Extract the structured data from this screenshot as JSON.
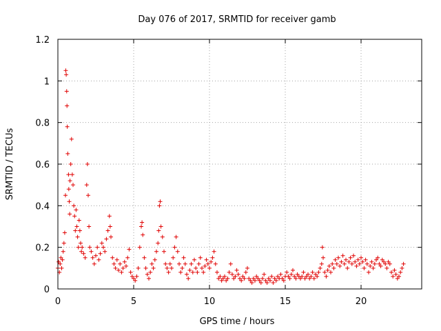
{
  "chart_data": {
    "type": "scatter",
    "title": "Day 076 of 2017, SRMTID for receiver gamb",
    "xlabel": "GPS time / hours",
    "ylabel": "SRMTID / TECUs",
    "xlim": [
      0,
      24
    ],
    "ylim": [
      0,
      1.2
    ],
    "x_ticks": [
      0,
      5,
      10,
      15,
      20
    ],
    "x_tick_labels": [
      "0",
      "5",
      "10",
      "15",
      "20"
    ],
    "y_ticks": [
      0,
      0.2,
      0.4,
      0.6,
      0.8,
      1.0,
      1.2
    ],
    "y_tick_labels": [
      "0",
      "0.2",
      "0.4",
      "0.6",
      "0.8",
      "1",
      "1.2"
    ],
    "grid": true,
    "marker": "+",
    "color": "#e00000",
    "series": [
      {
        "name": "SRMTID",
        "points": [
          [
            0.0,
            0.1
          ],
          [
            0.05,
            0.13
          ],
          [
            0.1,
            0.08
          ],
          [
            0.15,
            0.12
          ],
          [
            0.2,
            0.15
          ],
          [
            0.25,
            0.1
          ],
          [
            0.3,
            0.14
          ],
          [
            0.35,
            0.18
          ],
          [
            0.4,
            0.22
          ],
          [
            0.45,
            0.27
          ],
          [
            0.5,
            0.45
          ],
          [
            0.52,
            1.05
          ],
          [
            0.55,
            1.03
          ],
          [
            0.58,
            0.95
          ],
          [
            0.6,
            0.88
          ],
          [
            0.62,
            0.78
          ],
          [
            0.65,
            0.65
          ],
          [
            0.7,
            0.55
          ],
          [
            0.72,
            0.48
          ],
          [
            0.75,
            0.42
          ],
          [
            0.78,
            0.36
          ],
          [
            0.8,
            0.52
          ],
          [
            0.85,
            0.6
          ],
          [
            0.9,
            0.72
          ],
          [
            0.95,
            0.55
          ],
          [
            1.0,
            0.5
          ],
          [
            1.05,
            0.4
          ],
          [
            1.1,
            0.35
          ],
          [
            1.15,
            0.28
          ],
          [
            1.2,
            0.38
          ],
          [
            1.25,
            0.3
          ],
          [
            1.3,
            0.25
          ],
          [
            1.35,
            0.2
          ],
          [
            1.4,
            0.33
          ],
          [
            1.45,
            0.28
          ],
          [
            1.5,
            0.22
          ],
          [
            1.55,
            0.18
          ],
          [
            1.6,
            0.2
          ],
          [
            1.7,
            0.17
          ],
          [
            1.8,
            0.15
          ],
          [
            1.9,
            0.5
          ],
          [
            1.95,
            0.6
          ],
          [
            2.0,
            0.45
          ],
          [
            2.05,
            0.3
          ],
          [
            2.1,
            0.2
          ],
          [
            2.2,
            0.18
          ],
          [
            2.3,
            0.15
          ],
          [
            2.4,
            0.12
          ],
          [
            2.5,
            0.16
          ],
          [
            2.6,
            0.2
          ],
          [
            2.7,
            0.14
          ],
          [
            2.8,
            0.17
          ],
          [
            2.9,
            0.22
          ],
          [
            3.0,
            0.2
          ],
          [
            3.1,
            0.18
          ],
          [
            3.2,
            0.24
          ],
          [
            3.3,
            0.28
          ],
          [
            3.4,
            0.35
          ],
          [
            3.45,
            0.3
          ],
          [
            3.5,
            0.25
          ],
          [
            3.6,
            0.15
          ],
          [
            3.7,
            0.12
          ],
          [
            3.8,
            0.1
          ],
          [
            3.9,
            0.14
          ],
          [
            4.0,
            0.09
          ],
          [
            4.1,
            0.12
          ],
          [
            4.2,
            0.08
          ],
          [
            4.3,
            0.1
          ],
          [
            4.4,
            0.13
          ],
          [
            4.5,
            0.11
          ],
          [
            4.6,
            0.15
          ],
          [
            4.7,
            0.19
          ],
          [
            4.8,
            0.08
          ],
          [
            4.9,
            0.06
          ],
          [
            5.0,
            0.05
          ],
          [
            5.1,
            0.04
          ],
          [
            5.2,
            0.06
          ],
          [
            5.3,
            0.1
          ],
          [
            5.4,
            0.2
          ],
          [
            5.5,
            0.3
          ],
          [
            5.55,
            0.32
          ],
          [
            5.6,
            0.26
          ],
          [
            5.7,
            0.15
          ],
          [
            5.8,
            0.1
          ],
          [
            5.9,
            0.07
          ],
          [
            6.0,
            0.05
          ],
          [
            6.1,
            0.08
          ],
          [
            6.2,
            0.12
          ],
          [
            6.3,
            0.1
          ],
          [
            6.4,
            0.14
          ],
          [
            6.5,
            0.18
          ],
          [
            6.6,
            0.22
          ],
          [
            6.65,
            0.28
          ],
          [
            6.7,
            0.4
          ],
          [
            6.75,
            0.42
          ],
          [
            6.8,
            0.3
          ],
          [
            6.9,
            0.25
          ],
          [
            7.0,
            0.18
          ],
          [
            7.1,
            0.12
          ],
          [
            7.2,
            0.1
          ],
          [
            7.3,
            0.08
          ],
          [
            7.4,
            0.12
          ],
          [
            7.5,
            0.1
          ],
          [
            7.6,
            0.15
          ],
          [
            7.7,
            0.2
          ],
          [
            7.8,
            0.25
          ],
          [
            7.9,
            0.18
          ],
          [
            8.0,
            0.12
          ],
          [
            8.1,
            0.08
          ],
          [
            8.2,
            0.1
          ],
          [
            8.3,
            0.15
          ],
          [
            8.4,
            0.12
          ],
          [
            8.5,
            0.07
          ],
          [
            8.6,
            0.05
          ],
          [
            8.7,
            0.09
          ],
          [
            8.8,
            0.12
          ],
          [
            8.9,
            0.08
          ],
          [
            9.0,
            0.14
          ],
          [
            9.1,
            0.1
          ],
          [
            9.2,
            0.08
          ],
          [
            9.3,
            0.12
          ],
          [
            9.4,
            0.15
          ],
          [
            9.5,
            0.1
          ],
          [
            9.6,
            0.08
          ],
          [
            9.7,
            0.11
          ],
          [
            9.8,
            0.14
          ],
          [
            9.9,
            0.12
          ],
          [
            10.0,
            0.1
          ],
          [
            10.1,
            0.13
          ],
          [
            10.2,
            0.15
          ],
          [
            10.3,
            0.18
          ],
          [
            10.4,
            0.12
          ],
          [
            10.5,
            0.08
          ],
          [
            10.6,
            0.05
          ],
          [
            10.7,
            0.06
          ],
          [
            10.8,
            0.04
          ],
          [
            10.9,
            0.05
          ],
          [
            11.0,
            0.06
          ],
          [
            11.1,
            0.04
          ],
          [
            11.2,
            0.05
          ],
          [
            11.3,
            0.08
          ],
          [
            11.4,
            0.12
          ],
          [
            11.5,
            0.07
          ],
          [
            11.6,
            0.05
          ],
          [
            11.7,
            0.06
          ],
          [
            11.8,
            0.09
          ],
          [
            11.9,
            0.07
          ],
          [
            12.0,
            0.05
          ],
          [
            12.1,
            0.04
          ],
          [
            12.2,
            0.06
          ],
          [
            12.3,
            0.05
          ],
          [
            12.4,
            0.08
          ],
          [
            12.5,
            0.1
          ],
          [
            12.6,
            0.05
          ],
          [
            12.7,
            0.04
          ],
          [
            12.8,
            0.03
          ],
          [
            12.9,
            0.05
          ],
          [
            13.0,
            0.04
          ],
          [
            13.1,
            0.06
          ],
          [
            13.2,
            0.05
          ],
          [
            13.3,
            0.04
          ],
          [
            13.4,
            0.03
          ],
          [
            13.5,
            0.05
          ],
          [
            13.6,
            0.07
          ],
          [
            13.7,
            0.04
          ],
          [
            13.8,
            0.03
          ],
          [
            13.9,
            0.05
          ],
          [
            14.0,
            0.04
          ],
          [
            14.1,
            0.06
          ],
          [
            14.2,
            0.03
          ],
          [
            14.3,
            0.05
          ],
          [
            14.4,
            0.04
          ],
          [
            14.5,
            0.06
          ],
          [
            14.6,
            0.05
          ],
          [
            14.7,
            0.07
          ],
          [
            14.8,
            0.05
          ],
          [
            14.9,
            0.04
          ],
          [
            15.0,
            0.06
          ],
          [
            15.1,
            0.08
          ],
          [
            15.2,
            0.06
          ],
          [
            15.3,
            0.05
          ],
          [
            15.4,
            0.07
          ],
          [
            15.5,
            0.09
          ],
          [
            15.6,
            0.06
          ],
          [
            15.7,
            0.05
          ],
          [
            15.8,
            0.07
          ],
          [
            15.9,
            0.06
          ],
          [
            16.0,
            0.05
          ],
          [
            16.1,
            0.06
          ],
          [
            16.2,
            0.08
          ],
          [
            16.3,
            0.05
          ],
          [
            16.4,
            0.06
          ],
          [
            16.5,
            0.07
          ],
          [
            16.6,
            0.05
          ],
          [
            16.7,
            0.06
          ],
          [
            16.8,
            0.08
          ],
          [
            16.9,
            0.05
          ],
          [
            17.0,
            0.07
          ],
          [
            17.1,
            0.06
          ],
          [
            17.2,
            0.08
          ],
          [
            17.3,
            0.1
          ],
          [
            17.4,
            0.12
          ],
          [
            17.45,
            0.2
          ],
          [
            17.5,
            0.15
          ],
          [
            17.6,
            0.08
          ],
          [
            17.7,
            0.06
          ],
          [
            17.8,
            0.09
          ],
          [
            17.9,
            0.11
          ],
          [
            18.0,
            0.08
          ],
          [
            18.1,
            0.12
          ],
          [
            18.2,
            0.1
          ],
          [
            18.3,
            0.14
          ],
          [
            18.4,
            0.12
          ],
          [
            18.5,
            0.15
          ],
          [
            18.6,
            0.11
          ],
          [
            18.7,
            0.13
          ],
          [
            18.8,
            0.16
          ],
          [
            18.9,
            0.12
          ],
          [
            19.0,
            0.14
          ],
          [
            19.1,
            0.1
          ],
          [
            19.2,
            0.13
          ],
          [
            19.3,
            0.15
          ],
          [
            19.4,
            0.12
          ],
          [
            19.5,
            0.16
          ],
          [
            19.6,
            0.13
          ],
          [
            19.7,
            0.11
          ],
          [
            19.8,
            0.14
          ],
          [
            19.9,
            0.12
          ],
          [
            20.0,
            0.15
          ],
          [
            20.1,
            0.13
          ],
          [
            20.2,
            0.1
          ],
          [
            20.3,
            0.14
          ],
          [
            20.4,
            0.12
          ],
          [
            20.5,
            0.08
          ],
          [
            20.6,
            0.11
          ],
          [
            20.7,
            0.13
          ],
          [
            20.8,
            0.1
          ],
          [
            20.9,
            0.12
          ],
          [
            21.0,
            0.14
          ],
          [
            21.1,
            0.15
          ],
          [
            21.2,
            0.12
          ],
          [
            21.3,
            0.11
          ],
          [
            21.4,
            0.14
          ],
          [
            21.5,
            0.13
          ],
          [
            21.6,
            0.12
          ],
          [
            21.7,
            0.1
          ],
          [
            21.8,
            0.13
          ],
          [
            21.9,
            0.12
          ],
          [
            22.0,
            0.08
          ],
          [
            22.1,
            0.06
          ],
          [
            22.2,
            0.09
          ],
          [
            22.3,
            0.07
          ],
          [
            22.4,
            0.05
          ],
          [
            22.5,
            0.06
          ],
          [
            22.6,
            0.08
          ],
          [
            22.7,
            0.1
          ],
          [
            22.8,
            0.12
          ]
        ]
      }
    ]
  }
}
